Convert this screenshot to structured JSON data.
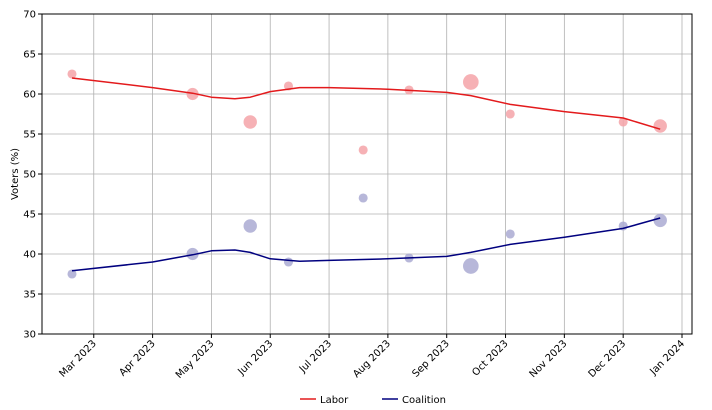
{
  "chart_data": {
    "type": "bubble-trend",
    "y_label": "Voters (%)",
    "ylim": [
      30,
      70
    ],
    "yticks": [
      30,
      35,
      40,
      45,
      50,
      55,
      60,
      65,
      70
    ],
    "xlim": [
      2.12,
      13.17
    ],
    "xticks": [
      {
        "value": 3,
        "label": "Mar 2023"
      },
      {
        "value": 4,
        "label": "Apr 2023"
      },
      {
        "value": 5,
        "label": "May 2023"
      },
      {
        "value": 6,
        "label": "Jun 2023"
      },
      {
        "value": 7,
        "label": "Jul 2023"
      },
      {
        "value": 8,
        "label": "Aug 2023"
      },
      {
        "value": 9,
        "label": "Sep 2023"
      },
      {
        "value": 10,
        "label": "Oct 2023"
      },
      {
        "value": 11,
        "label": "Nov 2023"
      },
      {
        "value": 12,
        "label": "Dec 2023"
      },
      {
        "value": 13,
        "label": "Jan 2024"
      }
    ],
    "grid": true,
    "legend": "bottom",
    "series": [
      {
        "name": "Labor",
        "color": "#e31a1c",
        "point_color": "#f4a3a8",
        "x": [
          2.63,
          4.68,
          5.66,
          6.31,
          7.58,
          8.36,
          9.41,
          10.08,
          12.0,
          12.63
        ],
        "values": [
          62.5,
          60,
          56.5,
          61,
          53,
          60.5,
          61.5,
          57.5,
          56.5,
          56
        ],
        "sizes": [
          1000,
          1800,
          2200,
          1000,
          1000,
          1000,
          3000,
          1000,
          1000,
          2200
        ],
        "trend": {
          "x": [
            2.63,
            4,
            4.68,
            5,
            5.4,
            5.66,
            6,
            6.5,
            7,
            8,
            9,
            9.41,
            10.08,
            11,
            12,
            12.63
          ],
          "values": [
            62,
            60.8,
            60.1,
            59.6,
            59.4,
            59.6,
            60.3,
            60.8,
            60.8,
            60.6,
            60.2,
            59.8,
            58.7,
            57.8,
            57,
            55.6
          ]
        }
      },
      {
        "name": "Coalition",
        "color": "#00007f",
        "point_color": "#aaaad2",
        "x": [
          2.63,
          4.68,
          5.66,
          6.31,
          7.58,
          8.36,
          9.41,
          10.08,
          12.0,
          12.63
        ],
        "values": [
          37.5,
          40,
          43.5,
          39,
          47,
          39.5,
          38.5,
          42.5,
          43.5,
          44.2
        ],
        "sizes": [
          1000,
          1800,
          2200,
          1000,
          1000,
          1000,
          3000,
          1000,
          1000,
          2200
        ],
        "trend": {
          "x": [
            2.63,
            4,
            4.68,
            5,
            5.4,
            5.66,
            6,
            6.5,
            7,
            8,
            9,
            9.41,
            10.08,
            11,
            12,
            12.63
          ],
          "values": [
            37.9,
            39,
            39.9,
            40.4,
            40.5,
            40.2,
            39.4,
            39.1,
            39.2,
            39.4,
            39.7,
            40.2,
            41.2,
            42.1,
            43.2,
            44.5
          ]
        }
      }
    ]
  }
}
